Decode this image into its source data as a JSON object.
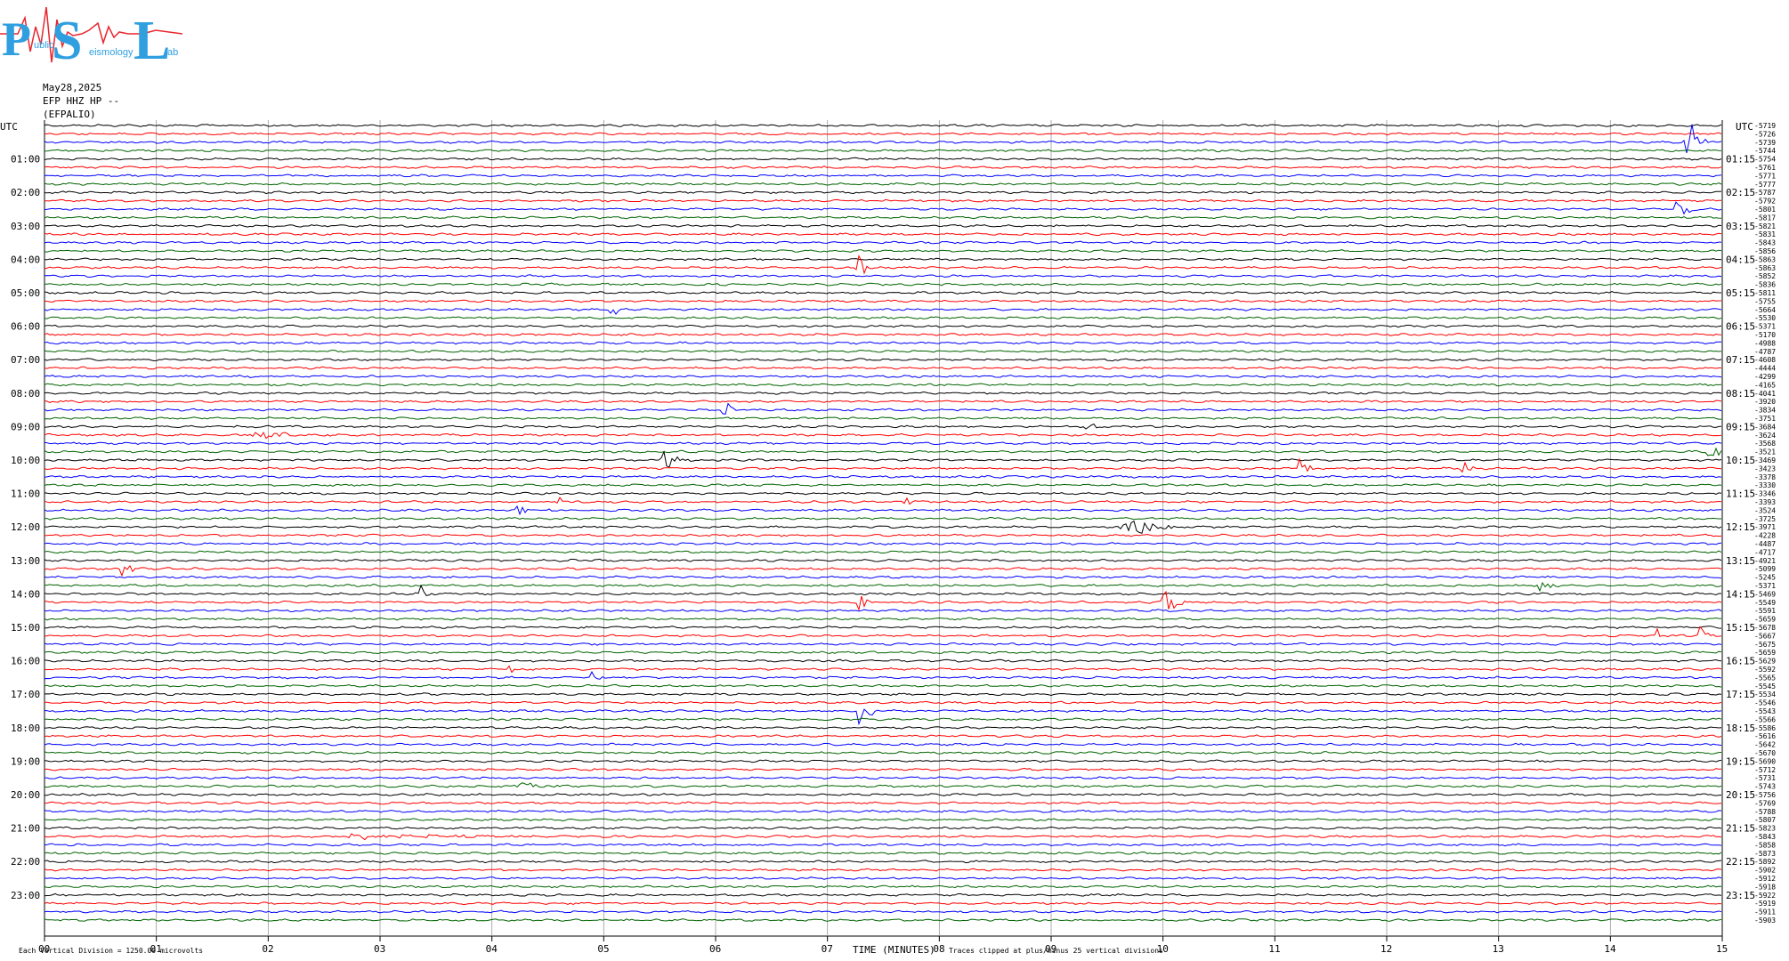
{
  "logo": {
    "letters": [
      "P",
      "S",
      "L"
    ],
    "small_words": [
      "ublic",
      "eismology",
      "ab"
    ],
    "colors": {
      "letters": "#2f9fe0",
      "waveform": "#e8262e"
    }
  },
  "header": {
    "date": "May28,2025",
    "station": "EFP HHZ HP --",
    "site": "(EFPALIO)"
  },
  "chart_data": {
    "type": "helicorder",
    "colors": [
      "#000000",
      "#ff0000",
      "#0000ff",
      "#006400"
    ],
    "row_minutes": 15,
    "rows_per_hour": 4,
    "utc_label": "UTC",
    "left_hour_labels": [
      "01:00",
      "02:00",
      "03:00",
      "04:00",
      "05:00",
      "06:00",
      "07:00",
      "08:00",
      "09:00",
      "10:00",
      "11:00",
      "12:00",
      "13:00",
      "14:00",
      "15:00",
      "16:00",
      "17:00",
      "18:00",
      "19:00",
      "20:00",
      "21:00",
      "22:00",
      "23:00"
    ],
    "right_hour_labels": [
      "01:15",
      "02:15",
      "03:15",
      "04:15",
      "05:15",
      "06:15",
      "07:15",
      "08:15",
      "09:15",
      "10:15",
      "11:15",
      "12:15",
      "13:15",
      "14:15",
      "15:15",
      "16:15",
      "17:15",
      "18:15",
      "19:15",
      "20:15",
      "21:15",
      "22:15",
      "23:15"
    ],
    "x_ticks": [
      "00",
      "01",
      "02",
      "03",
      "04",
      "05",
      "06",
      "07",
      "08",
      "09",
      "10",
      "11",
      "12",
      "13",
      "14",
      "15"
    ],
    "xlabel": "TIME (MINUTES)",
    "offsets": [
      "-5719",
      "-5726",
      "-5739",
      "-5744",
      "-5754",
      "-5761",
      "-5771",
      "-5777",
      "-5787",
      "-5792",
      "-5801",
      "-5817",
      "-5821",
      "-5831",
      "-5843",
      "-5856",
      "-5863",
      "-5863",
      "-5852",
      "-5836",
      "-5811",
      "-5755",
      "-5664",
      "-5530",
      "-5371",
      "-5170",
      "-4988",
      "-4787",
      "-4608",
      "-4444",
      "-4299",
      "-4165",
      "-4041",
      "-3920",
      "-3834",
      "-3751",
      "-3684",
      "-3624",
      "-3568",
      "-3521",
      "-3469",
      "-3423",
      "-3378",
      "-3330",
      "-3346",
      "-3393",
      "-3524",
      "-3725",
      "-3971",
      "-4228",
      "-4487",
      "-4717",
      "-4921",
      "-5099",
      "-5245",
      "-5371",
      "-5469",
      "-5549",
      "-5591",
      "-5659",
      "-5678",
      "-5667",
      "-5675",
      "-5659",
      "-5629",
      "-5592",
      "-5565",
      "-5545",
      "-5534",
      "-5546",
      "-5543",
      "-5566",
      "-5586",
      "-5616",
      "-5642",
      "-5670",
      "-5690",
      "-5712",
      "-5731",
      "-5743",
      "-5756",
      "-5769",
      "-5788",
      "-5807",
      "-5823",
      "-5843",
      "-5858",
      "-5873",
      "-5892",
      "-5902",
      "-5912",
      "-5918",
      "-5922",
      "-5919",
      "-5911",
      "-5903"
    ],
    "events": [
      {
        "row": 2,
        "minute": 14.7,
        "amp": 3.2,
        "dur": 0.15
      },
      {
        "row": 10,
        "minute": 14.6,
        "amp": 2.6,
        "dur": 0.12
      },
      {
        "row": 17,
        "minute": 7.28,
        "amp": 1.8,
        "dur": 0.12
      },
      {
        "row": 22,
        "minute": 5.08,
        "amp": 1.0,
        "dur": 0.12
      },
      {
        "row": 34,
        "minute": 6.08,
        "amp": 1.2,
        "dur": 0.1
      },
      {
        "row": 36,
        "minute": 9.32,
        "amp": 0.8,
        "dur": 0.12
      },
      {
        "row": 37,
        "minute": 1.95,
        "amp": 0.5,
        "dur": 0.4
      },
      {
        "row": 39,
        "minute": 14.9,
        "amp": 2.0,
        "dur": 0.12
      },
      {
        "row": 40,
        "minute": 5.55,
        "amp": 1.4,
        "dur": 0.2
      },
      {
        "row": 41,
        "minute": 11.22,
        "amp": 1.6,
        "dur": 0.1
      },
      {
        "row": 41,
        "minute": 12.68,
        "amp": 1.2,
        "dur": 0.1
      },
      {
        "row": 45,
        "minute": 4.6,
        "amp": 0.8,
        "dur": 0.1
      },
      {
        "row": 45,
        "minute": 7.7,
        "amp": 0.5,
        "dur": 0.15
      },
      {
        "row": 46,
        "minute": 4.25,
        "amp": 0.7,
        "dur": 0.25
      },
      {
        "row": 48,
        "minute": 9.7,
        "amp": 1.7,
        "dur": 0.35
      },
      {
        "row": 53,
        "minute": 0.7,
        "amp": 1.6,
        "dur": 0.12
      },
      {
        "row": 55,
        "minute": 13.38,
        "amp": 1.2,
        "dur": 0.12
      },
      {
        "row": 56,
        "minute": 3.35,
        "amp": 1.8,
        "dur": 0.12
      },
      {
        "row": 57,
        "minute": 7.28,
        "amp": 1.4,
        "dur": 0.12
      },
      {
        "row": 57,
        "minute": 10.02,
        "amp": 1.8,
        "dur": 0.15
      },
      {
        "row": 61,
        "minute": 14.42,
        "amp": 1.0,
        "dur": 0.1
      },
      {
        "row": 61,
        "minute": 14.78,
        "amp": 1.8,
        "dur": 0.1
      },
      {
        "row": 65,
        "minute": 4.15,
        "amp": 1.6,
        "dur": 0.12
      },
      {
        "row": 66,
        "minute": 4.9,
        "amp": 1.0,
        "dur": 0.1
      },
      {
        "row": 70,
        "minute": 7.28,
        "amp": 2.4,
        "dur": 0.15
      },
      {
        "row": 79,
        "minute": 4.3,
        "amp": 0.6,
        "dur": 0.3
      },
      {
        "row": 85,
        "minute": 2.8,
        "amp": 0.3,
        "dur": 1.5
      }
    ]
  },
  "footer": {
    "division": "Each Vertical Division = 1250.00 microvolts",
    "clipping": "Traces clipped at plus/minus 25 vertical divisions"
  }
}
